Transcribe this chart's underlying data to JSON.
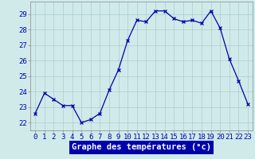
{
  "hours": [
    0,
    1,
    2,
    3,
    4,
    5,
    6,
    7,
    8,
    9,
    10,
    11,
    12,
    13,
    14,
    15,
    16,
    17,
    18,
    19,
    20,
    21,
    22,
    23
  ],
  "temps": [
    22.6,
    23.9,
    23.5,
    23.1,
    23.1,
    22.0,
    22.2,
    22.6,
    24.1,
    25.4,
    27.3,
    28.6,
    28.5,
    29.2,
    29.2,
    28.7,
    28.5,
    28.6,
    28.4,
    29.2,
    28.1,
    26.1,
    24.7,
    23.2
  ],
  "line_color": "#0000aa",
  "marker": "x",
  "marker_size": 2.5,
  "bg_color": "#d0eaea",
  "grid_color": "#aacccc",
  "xlabel": "Graphe des températures (°c)",
  "ylabel_ticks": [
    22,
    23,
    24,
    25,
    26,
    27,
    28,
    29
  ],
  "xlim": [
    -0.5,
    23.5
  ],
  "ylim": [
    21.5,
    29.8
  ],
  "xlabel_fontsize": 7.5,
  "tick_fontsize": 6.5,
  "xlabel_color": "#ffffff",
  "tick_color": "#0000aa",
  "xlabel_bg": "#0000aa",
  "spine_color": "#888888"
}
